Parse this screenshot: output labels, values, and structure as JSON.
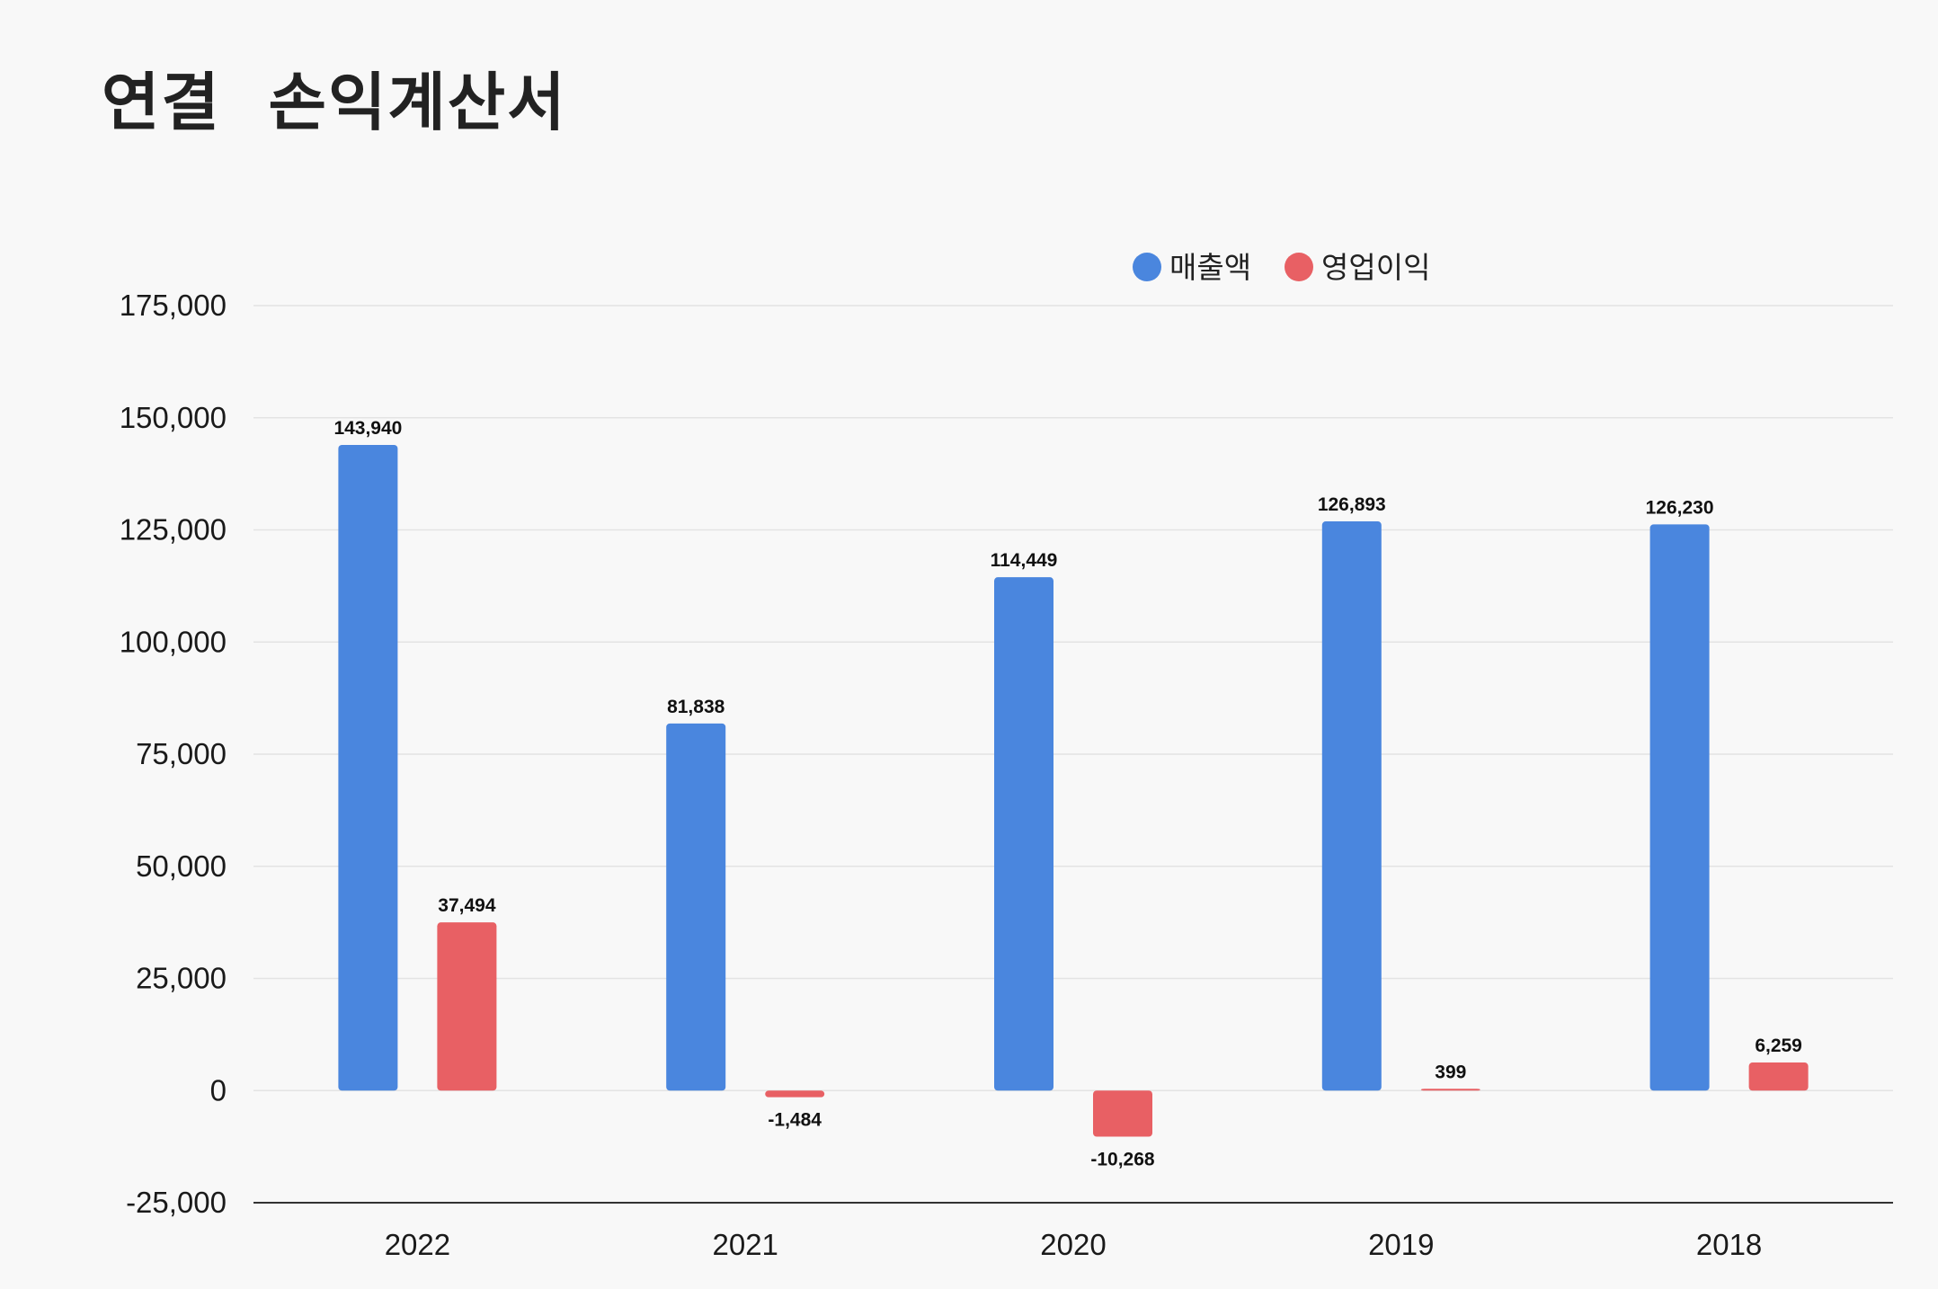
{
  "title": "연결  손익계산서",
  "chart_data": {
    "type": "bar",
    "title": "연결 손익계산서",
    "categories": [
      "2022",
      "2021",
      "2020",
      "2019",
      "2018"
    ],
    "series": [
      {
        "name": "매출액",
        "color": "#4a86de",
        "values": [
          143940,
          81838,
          114449,
          126893,
          126230
        ],
        "labels": [
          "143,940",
          "81,838",
          "114,449",
          "126,893",
          "126,230"
        ]
      },
      {
        "name": "영업이익",
        "color": "#e86064",
        "values": [
          37494,
          -1484,
          -10268,
          399,
          6259
        ],
        "labels": [
          "37,494",
          "-1,484",
          "-10,268",
          "399",
          "6,259"
        ]
      }
    ],
    "ylim": [
      -25000,
      175000
    ],
    "yticks": [
      175000,
      150000,
      125000,
      100000,
      75000,
      50000,
      25000,
      0,
      -25000
    ],
    "ytick_labels": [
      "175,000",
      "150,000",
      "125,000",
      "100,000",
      "75,000",
      "50,000",
      "25,000",
      "0",
      "-25,000"
    ],
    "xlabel": "",
    "ylabel": "",
    "legend_position": "top-right",
    "grid": true
  }
}
